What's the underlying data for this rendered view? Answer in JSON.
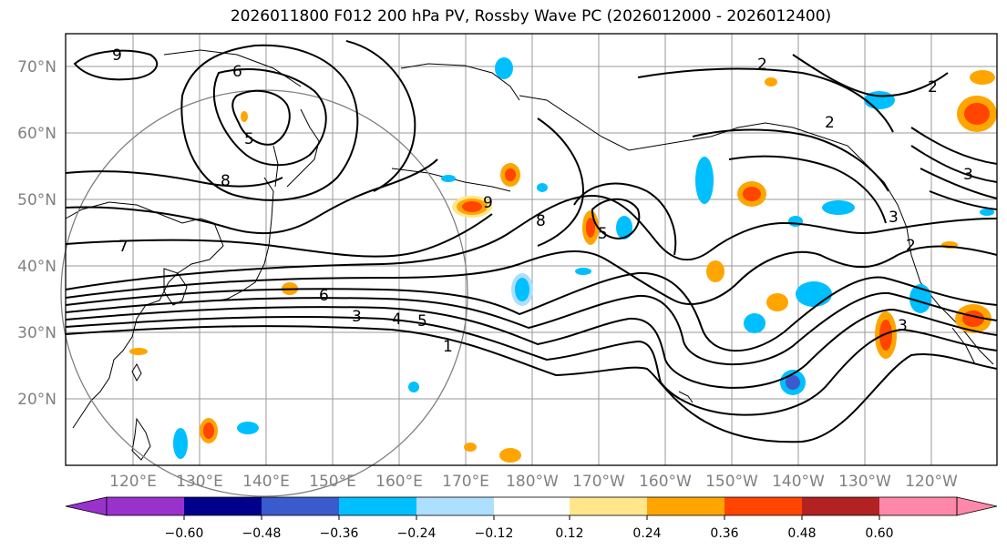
{
  "title": "2026011800 F012 200 hPa PV, Rossby Wave PC (2026012000 - 2026012400)",
  "map": {
    "lat_labels": [
      "70°N",
      "60°N",
      "50°N",
      "40°N",
      "30°N",
      "20°N"
    ],
    "lon_labels": [
      "120°E",
      "130°E",
      "140°E",
      "150°E",
      "160°E",
      "170°E",
      "180°W",
      "170°W",
      "160°W",
      "150°W",
      "140°W",
      "130°W",
      "120°W"
    ],
    "contour_labels": [
      "9",
      "6",
      "5",
      "8",
      "7",
      "6",
      "5",
      "4",
      "3",
      "1",
      "8",
      "5",
      "2",
      "2",
      "3",
      "2",
      "3",
      "3",
      "2",
      "9"
    ]
  },
  "colorbar": {
    "ticks": [
      "−0.60",
      "−0.48",
      "−0.36",
      "−0.24",
      "−0.12",
      "0.12",
      "0.24",
      "0.36",
      "0.48",
      "0.60"
    ],
    "colors": [
      "#9932CC",
      "#00008B",
      "#3A5BCC",
      "#00BFFF",
      "#ADDFFF",
      "#FFFFFF",
      "#FFE68A",
      "#FFA500",
      "#FF4500",
      "#B22222",
      "#FF88AA"
    ]
  }
}
